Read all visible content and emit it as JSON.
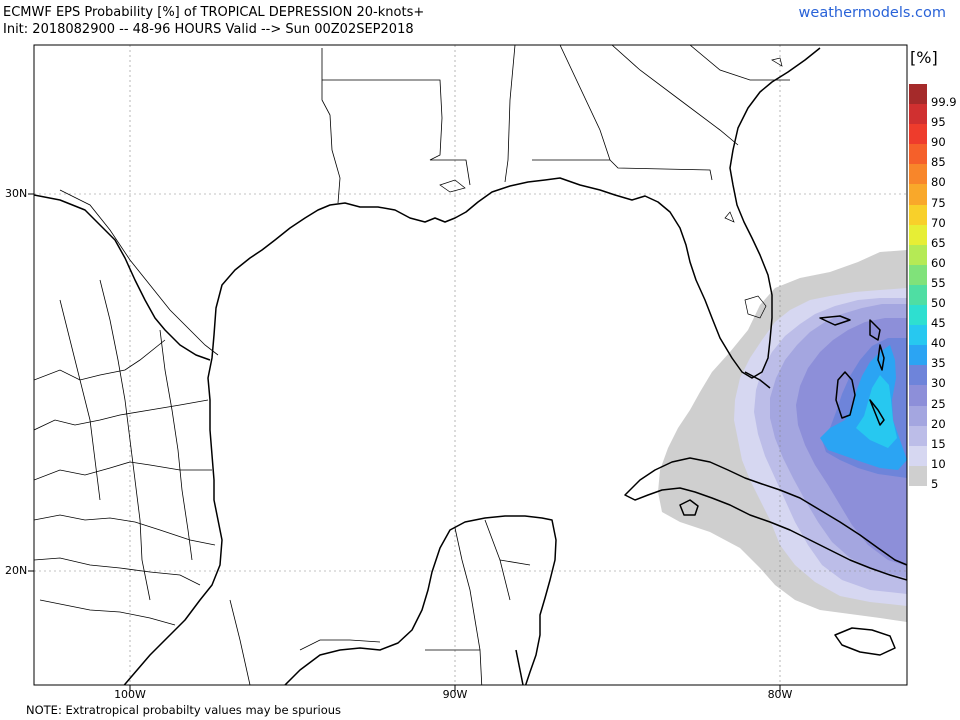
{
  "header": {
    "title": "ECMWF EPS Probability [%] of TROPICAL DEPRESSION 20-knots+",
    "subtitle": "Init: 2018082900 -- 48-96 HOURS Valid --> Sun 00Z02SEP2018",
    "site": "weathermodels.com"
  },
  "axes": {
    "lat_labels": [
      "30N",
      "20N"
    ],
    "lon_labels": [
      "100W",
      "90W",
      "80W"
    ]
  },
  "colorbar": {
    "unit": "[%]",
    "levels": [
      {
        "label": "99.9",
        "color": "#a52a2a"
      },
      {
        "label": "95",
        "color": "#d03030"
      },
      {
        "label": "90",
        "color": "#ee3c2c"
      },
      {
        "label": "85",
        "color": "#f5602a"
      },
      {
        "label": "80",
        "color": "#f8862a"
      },
      {
        "label": "75",
        "color": "#f9a82a"
      },
      {
        "label": "70",
        "color": "#f8d02a"
      },
      {
        "label": "65",
        "color": "#e7ee35"
      },
      {
        "label": "60",
        "color": "#b5ea55"
      },
      {
        "label": "55",
        "color": "#80e27a"
      },
      {
        "label": "50",
        "color": "#4fdea3"
      },
      {
        "label": "45",
        "color": "#2edfd0"
      },
      {
        "label": "40",
        "color": "#27c8f0"
      },
      {
        "label": "35",
        "color": "#2ba4f3"
      },
      {
        "label": "30",
        "color": "#6e84da"
      },
      {
        "label": "25",
        "color": "#8d8fd9"
      },
      {
        "label": "20",
        "color": "#a4a6e0"
      },
      {
        "label": "15",
        "color": "#bcbde8"
      },
      {
        "label": "10",
        "color": "#d6d7f1"
      },
      {
        "label": "5",
        "color": "#cfcfcf"
      }
    ]
  },
  "footer": {
    "note": "NOTE: Extratropical probabilty values may be spurious"
  }
}
